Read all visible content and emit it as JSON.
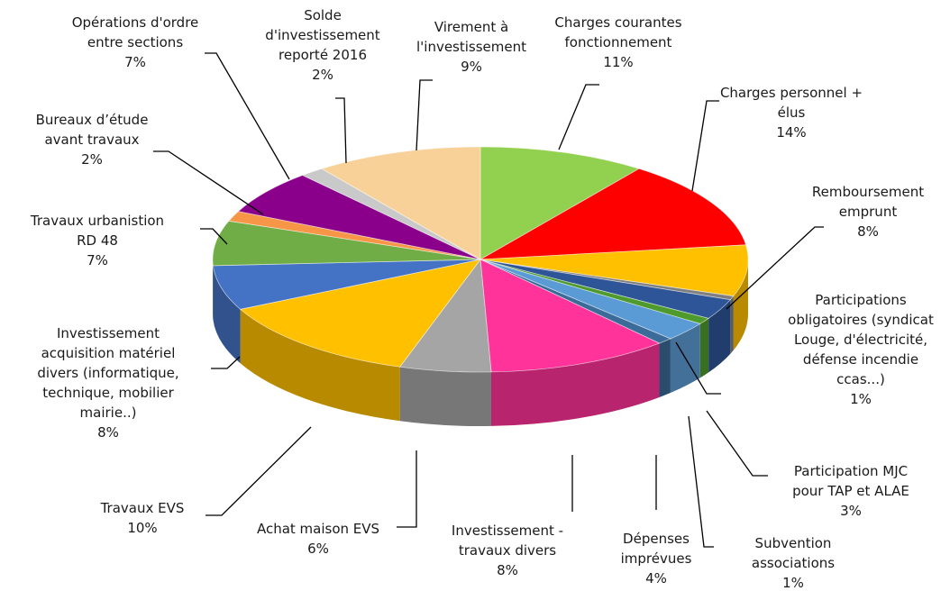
{
  "chart_data": {
    "type": "pie",
    "title": "",
    "slices": [
      {
        "label": [
          "Charges courantes",
          "fonctionnement"
        ],
        "percent_label": "11%",
        "value": 11,
        "color": "#92d050"
      },
      {
        "label": [
          "Charges personnel +",
          "élus"
        ],
        "percent_label": "14%",
        "value": 14,
        "color": "#ff0000"
      },
      {
        "label": [
          "Remboursement",
          "emprunt"
        ],
        "percent_label": "8%",
        "value": 8,
        "color": "#ffc000"
      },
      {
        "label": [],
        "percent_label": "",
        "value": 0.6,
        "color": "#7f7f7f"
      },
      {
        "label": [],
        "percent_label": "",
        "value": 3.2,
        "color": "#2e5597"
      },
      {
        "label": [
          "Participations",
          "obligatoires (syndicat",
          "Louge, d'électricité,",
          "défense incendie",
          "ccas...)"
        ],
        "percent_label": "1%",
        "value": 1,
        "color": "#4f9a2d"
      },
      {
        "label": [
          "Participation MJC",
          "pour TAP et ALAE"
        ],
        "percent_label": "3%",
        "value": 3,
        "color": "#5b9bd5"
      },
      {
        "label": [
          "Subvention",
          "associations"
        ],
        "percent_label": "1%",
        "value": 1,
        "color": "#3b6b99"
      },
      {
        "label": [
          "Dépenses",
          "imprévues"
        ],
        "percent_label": "4%",
        "value": 4,
        "color": "#ff3399"
      },
      {
        "label": [
          "Investissement -",
          "travaux divers"
        ],
        "percent_label": "8%",
        "value": 8,
        "color": "#a5a5a5"
      },
      {
        "label": [
          "Achat maison EVS"
        ],
        "percent_label": "6%",
        "value": 6,
        "color": "#ffc000"
      },
      {
        "label": [
          "Travaux EVS"
        ],
        "percent_label": "10%",
        "value": 10,
        "color": "#4472c4"
      },
      {
        "label": [
          "Investissement",
          "acquisition matériel",
          "divers (informatique,",
          "technique, mobilier",
          "mairie..)"
        ],
        "percent_label": "8%",
        "value": 8,
        "color": "#70ad47"
      },
      {
        "label": [
          "Travaux urbanistion",
          "RD 48"
        ],
        "percent_label": "7%",
        "value": 7,
        "color": "#f79646"
      },
      {
        "label": [
          "Bureaux d'étude",
          "avant travaux"
        ],
        "percent_label": "2%",
        "value": 2,
        "color": "#8b008b"
      },
      {
        "label": [
          "Opérations d'ordre",
          "entre sections"
        ],
        "percent_label": "7%",
        "value": 7,
        "color": "#c9c9c9"
      },
      {
        "label": [
          "Solde",
          "d'investissement",
          "reporté 2016"
        ],
        "percent_label": "2%",
        "value": 2,
        "color": "#f8d199"
      },
      {
        "label": [
          "Virement à",
          "l'investissement"
        ],
        "percent_label": "9%",
        "value": 9,
        "color": "#f8d199"
      }
    ]
  },
  "labels": [
    {
      "key": "charges-courantes",
      "lines": [
        "Charges courantes",
        "fonctionnement"
      ],
      "pct": "11%"
    },
    {
      "key": "charges-personnel",
      "lines": [
        "Charges personnel +",
        "élus"
      ],
      "pct": "14%"
    },
    {
      "key": "remboursement-emprunt",
      "lines": [
        "Remboursement",
        "emprunt"
      ],
      "pct": "8%"
    },
    {
      "key": "participations-obligatoires",
      "lines": [
        "Participations",
        "obligatoires (syndicat",
        "Louge, d'électricité,",
        "défense incendie",
        "ccas...)"
      ],
      "pct": "1%"
    },
    {
      "key": "participation-mjc",
      "lines": [
        "Participation MJC",
        "pour TAP et ALAE"
      ],
      "pct": "3%"
    },
    {
      "key": "subvention-associations",
      "lines": [
        "Subvention",
        "associations"
      ],
      "pct": "1%"
    },
    {
      "key": "depenses-imprevues",
      "lines": [
        "Dépenses",
        "imprévues"
      ],
      "pct": "4%"
    },
    {
      "key": "investissement-travaux-divers",
      "lines": [
        "Investissement -",
        "travaux divers"
      ],
      "pct": "8%"
    },
    {
      "key": "achat-maison-evs",
      "lines": [
        "Achat maison EVS"
      ],
      "pct": "6%"
    },
    {
      "key": "travaux-evs",
      "lines": [
        "Travaux EVS"
      ],
      "pct": "10%"
    },
    {
      "key": "investissement-acquisition",
      "lines": [
        "Investissement",
        "acquisition matériel",
        "divers (informatique,",
        "technique, mobilier",
        "mairie..)"
      ],
      "pct": "8%"
    },
    {
      "key": "travaux-urbanistion",
      "lines": [
        "Travaux urbanistion",
        "RD 48"
      ],
      "pct": "7%"
    },
    {
      "key": "bureaux-etude",
      "lines": [
        "Bureaux d’étude",
        "avant travaux"
      ],
      "pct": "2%"
    },
    {
      "key": "operations-ordre",
      "lines": [
        "Opérations d'ordre",
        "entre sections"
      ],
      "pct": "7%"
    },
    {
      "key": "solde-investissement",
      "lines": [
        "Solde",
        "d'investissement",
        "reporté 2016"
      ],
      "pct": "2%"
    },
    {
      "key": "virement-investissement",
      "lines": [
        "Virement à",
        "l'investissement"
      ],
      "pct": "9%"
    }
  ]
}
